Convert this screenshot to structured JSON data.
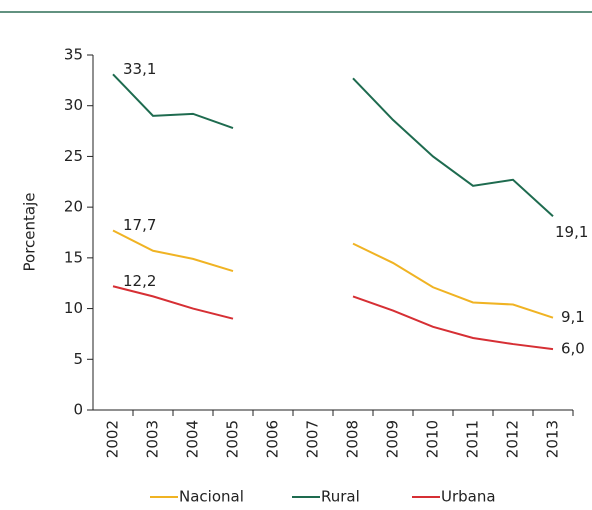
{
  "chart_data": {
    "type": "line",
    "y_label": "Porcentaje",
    "categories": [
      "2002",
      "2003",
      "2004",
      "2005",
      "2006",
      "2007",
      "2008",
      "2009",
      "2010",
      "2011",
      "2012",
      "2013"
    ],
    "series": [
      {
        "name": "Nacional",
        "color": "#f0b323",
        "values": [
          17.7,
          15.7,
          14.9,
          13.7,
          null,
          null,
          16.4,
          14.5,
          12.1,
          10.6,
          10.4,
          9.1
        ],
        "value_labels": [
          "17,7",
          null,
          null,
          null,
          null,
          null,
          null,
          null,
          null,
          null,
          null,
          "9,1"
        ]
      },
      {
        "name": "Rural",
        "color": "#1e6b4f",
        "values": [
          33.1,
          29.0,
          29.2,
          27.8,
          null,
          null,
          32.7,
          28.6,
          25.0,
          22.1,
          22.7,
          19.1
        ],
        "value_labels": [
          "33,1",
          null,
          null,
          null,
          null,
          null,
          null,
          null,
          null,
          null,
          null,
          "19,1"
        ]
      },
      {
        "name": "Urbana",
        "color": "#d62f34",
        "values": [
          12.2,
          11.2,
          10.0,
          9.0,
          null,
          null,
          11.2,
          9.8,
          8.2,
          7.1,
          6.5,
          6.0
        ],
        "value_labels": [
          "12,2",
          null,
          null,
          null,
          null,
          null,
          null,
          null,
          null,
          null,
          null,
          "6,0"
        ]
      }
    ],
    "ylim": [
      0,
      35
    ],
    "yticks": [
      0,
      5,
      10,
      15,
      20,
      25,
      30,
      35
    ],
    "grid": false
  }
}
